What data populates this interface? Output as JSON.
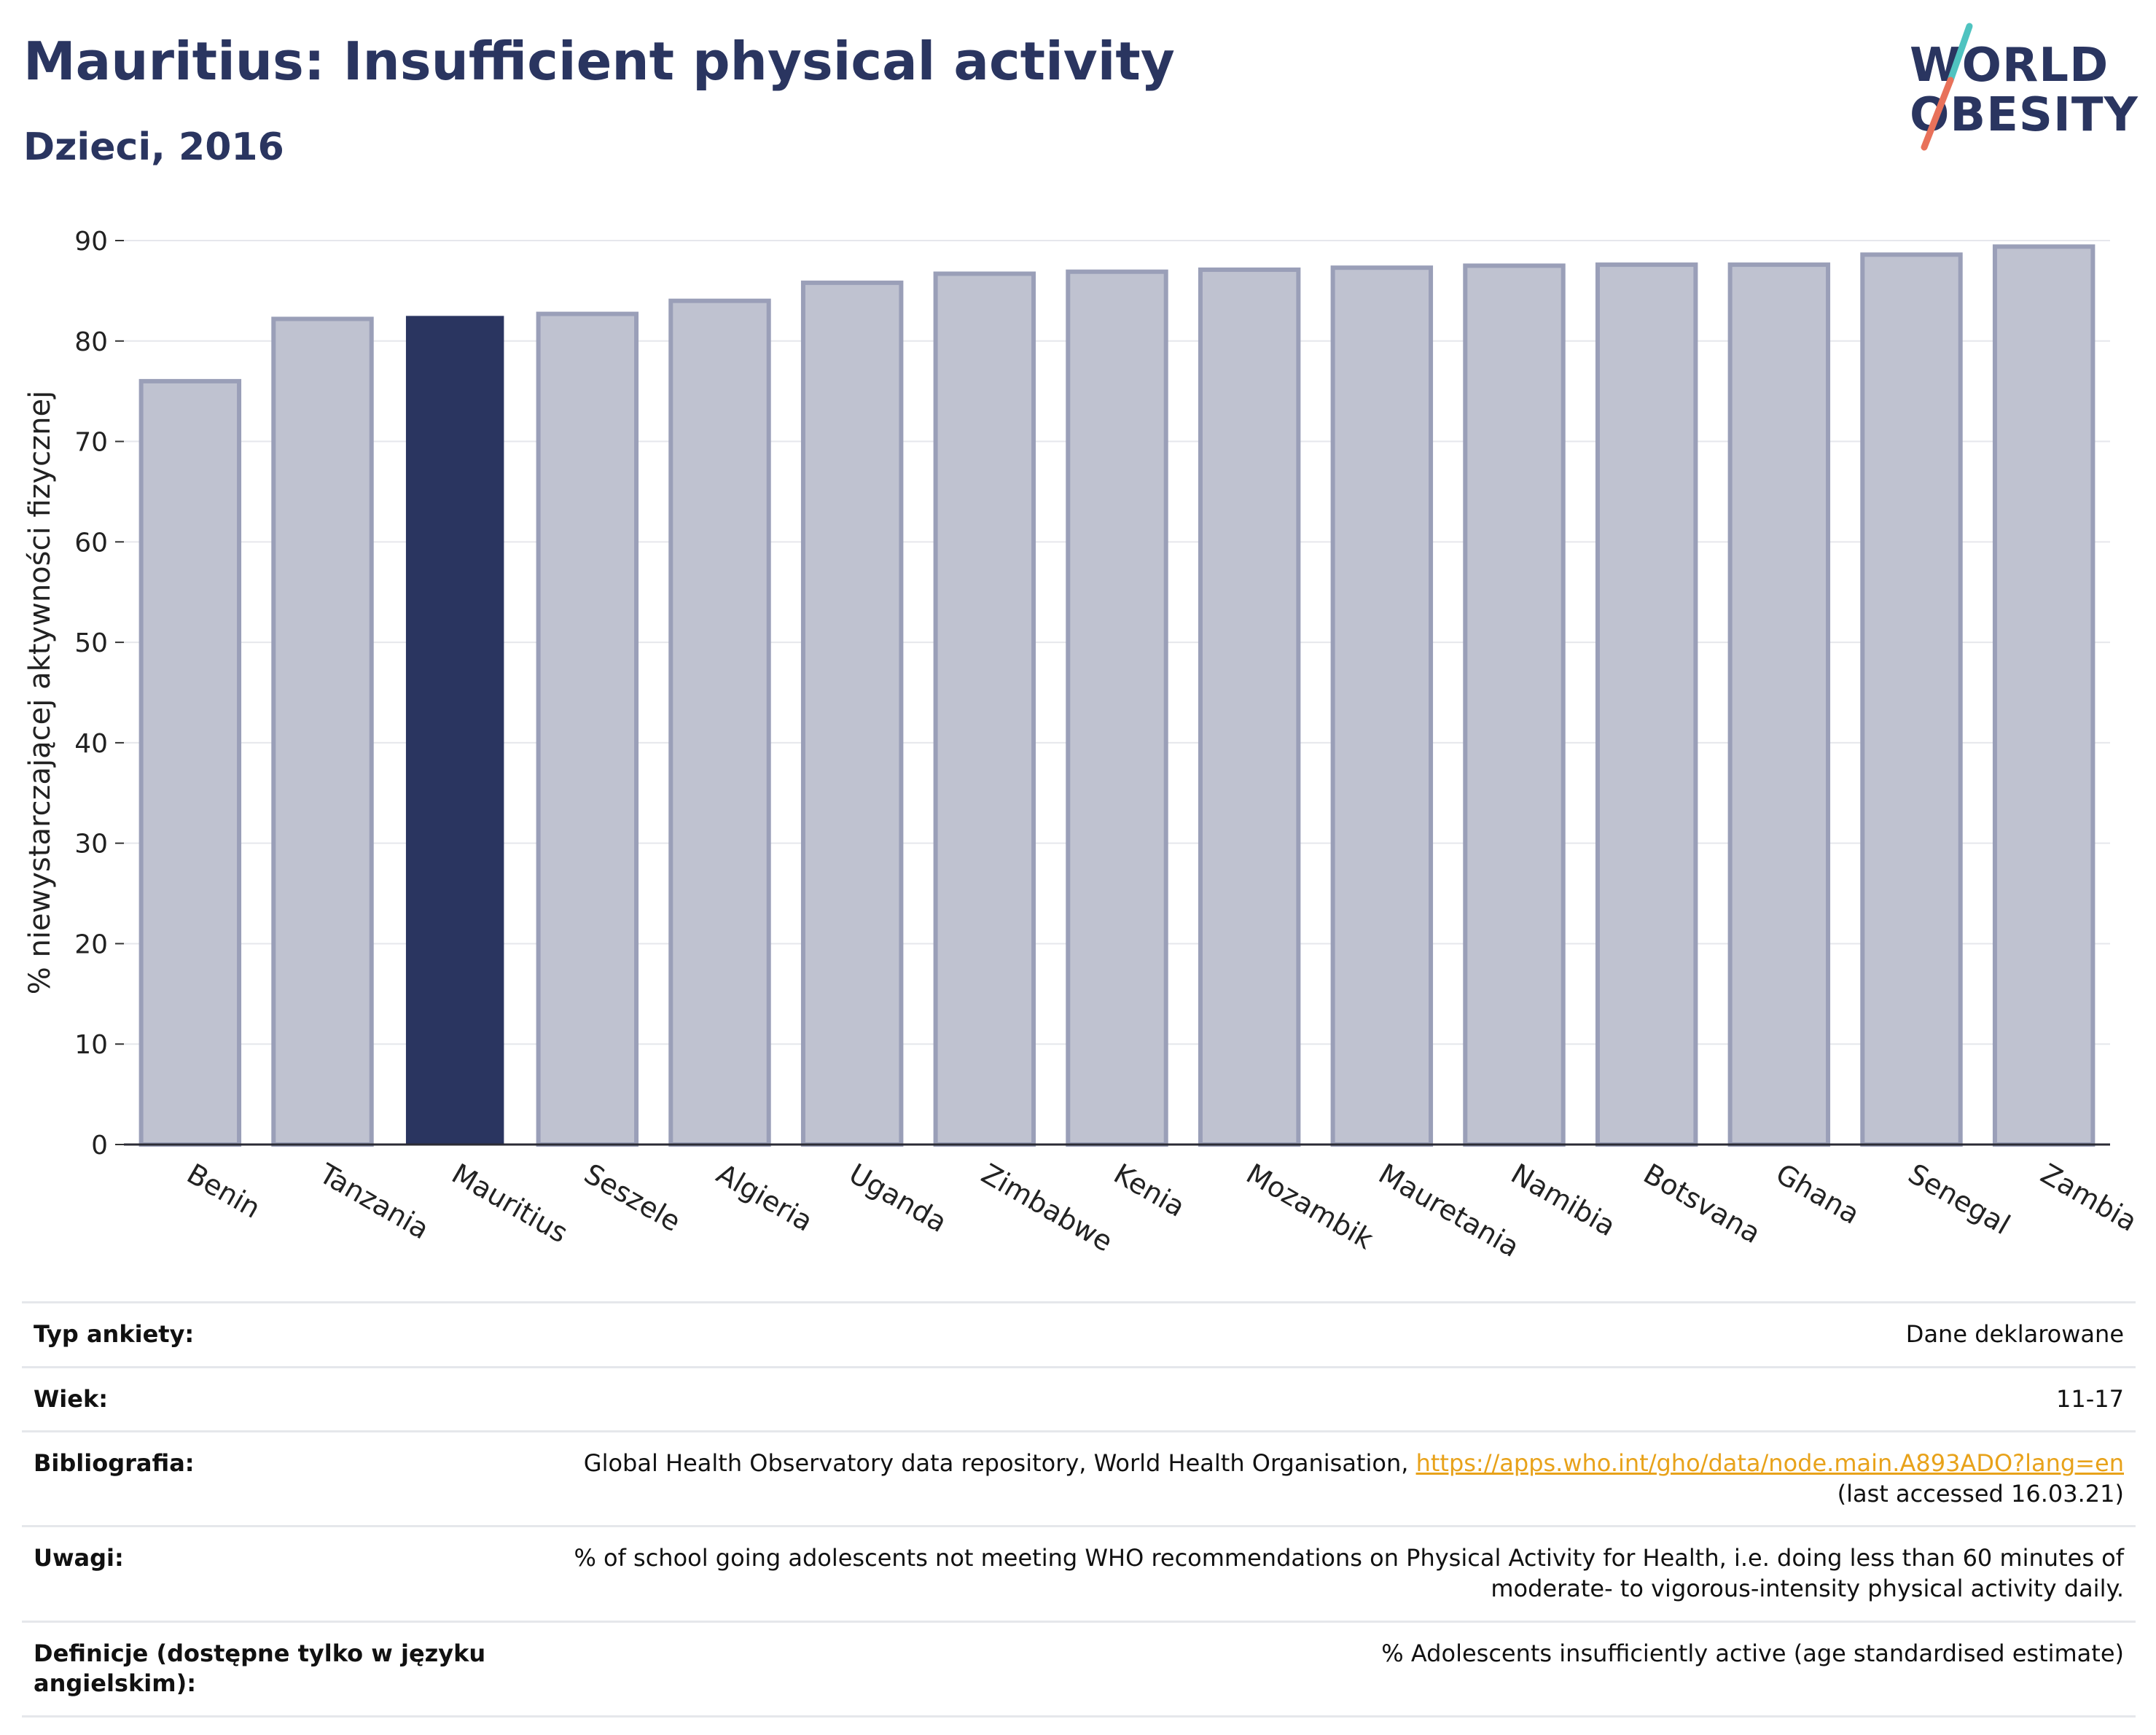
{
  "header": {
    "title": "Mauritius: Insufficient physical activity",
    "subtitle": "Dzieci, 2016"
  },
  "logo": {
    "line1": "WORLD",
    "line2": "OBESITY",
    "colors": {
      "text": "#2a3560",
      "slash_top": "#4fc3c0",
      "slash_bottom": "#e8715a"
    }
  },
  "colors": {
    "highlight": "#2a3560",
    "bar": "#bfc2d0",
    "bar_edge": "#9a9fb8"
  },
  "chart_data": {
    "type": "bar",
    "categories": [
      "Benin",
      "Tanzania",
      "Mauritius",
      "Seszele",
      "Algieria",
      "Uganda",
      "Zimbabwe",
      "Kenia",
      "Mozambik",
      "Mauretania",
      "Namibia",
      "Botsvana",
      "Ghana",
      "Senegal",
      "Zambia"
    ],
    "values": [
      76.0,
      82.2,
      82.5,
      82.7,
      84.0,
      85.8,
      86.7,
      86.9,
      87.1,
      87.3,
      87.5,
      87.6,
      87.6,
      88.6,
      89.4
    ],
    "highlight": "Mauritius",
    "ylabel": "% niewystarczającej aktywności fizycznej",
    "ylim": [
      0,
      90
    ],
    "yticks": [
      0,
      10,
      20,
      30,
      40,
      50,
      60,
      70,
      80,
      90
    ],
    "grid": true,
    "legend": "none"
  },
  "info": {
    "rows": [
      {
        "key": "Typ ankiety:",
        "value": "Dane deklarowane"
      },
      {
        "key": "Wiek:",
        "value": "11-17"
      },
      {
        "key": "Bibliografia:",
        "value": "Global Health Observatory data repository, World Health Organisation, ",
        "link": "https://apps.who.int/gho/data/node.main.A893ADO?lang=en",
        "value2": "(last accessed 16.03.21)"
      },
      {
        "key": "Uwagi:",
        "value": "% of school going adolescents not meeting WHO recommendations on Physical Activity for Health, i.e. doing less than 60 minutes of moderate- to vigorous-intensity physical activity daily."
      },
      {
        "key": "Definicje (dostępne tylko w języku angielskim):",
        "value": "% Adolescents insufficiently active (age standardised estimate)"
      }
    ]
  }
}
